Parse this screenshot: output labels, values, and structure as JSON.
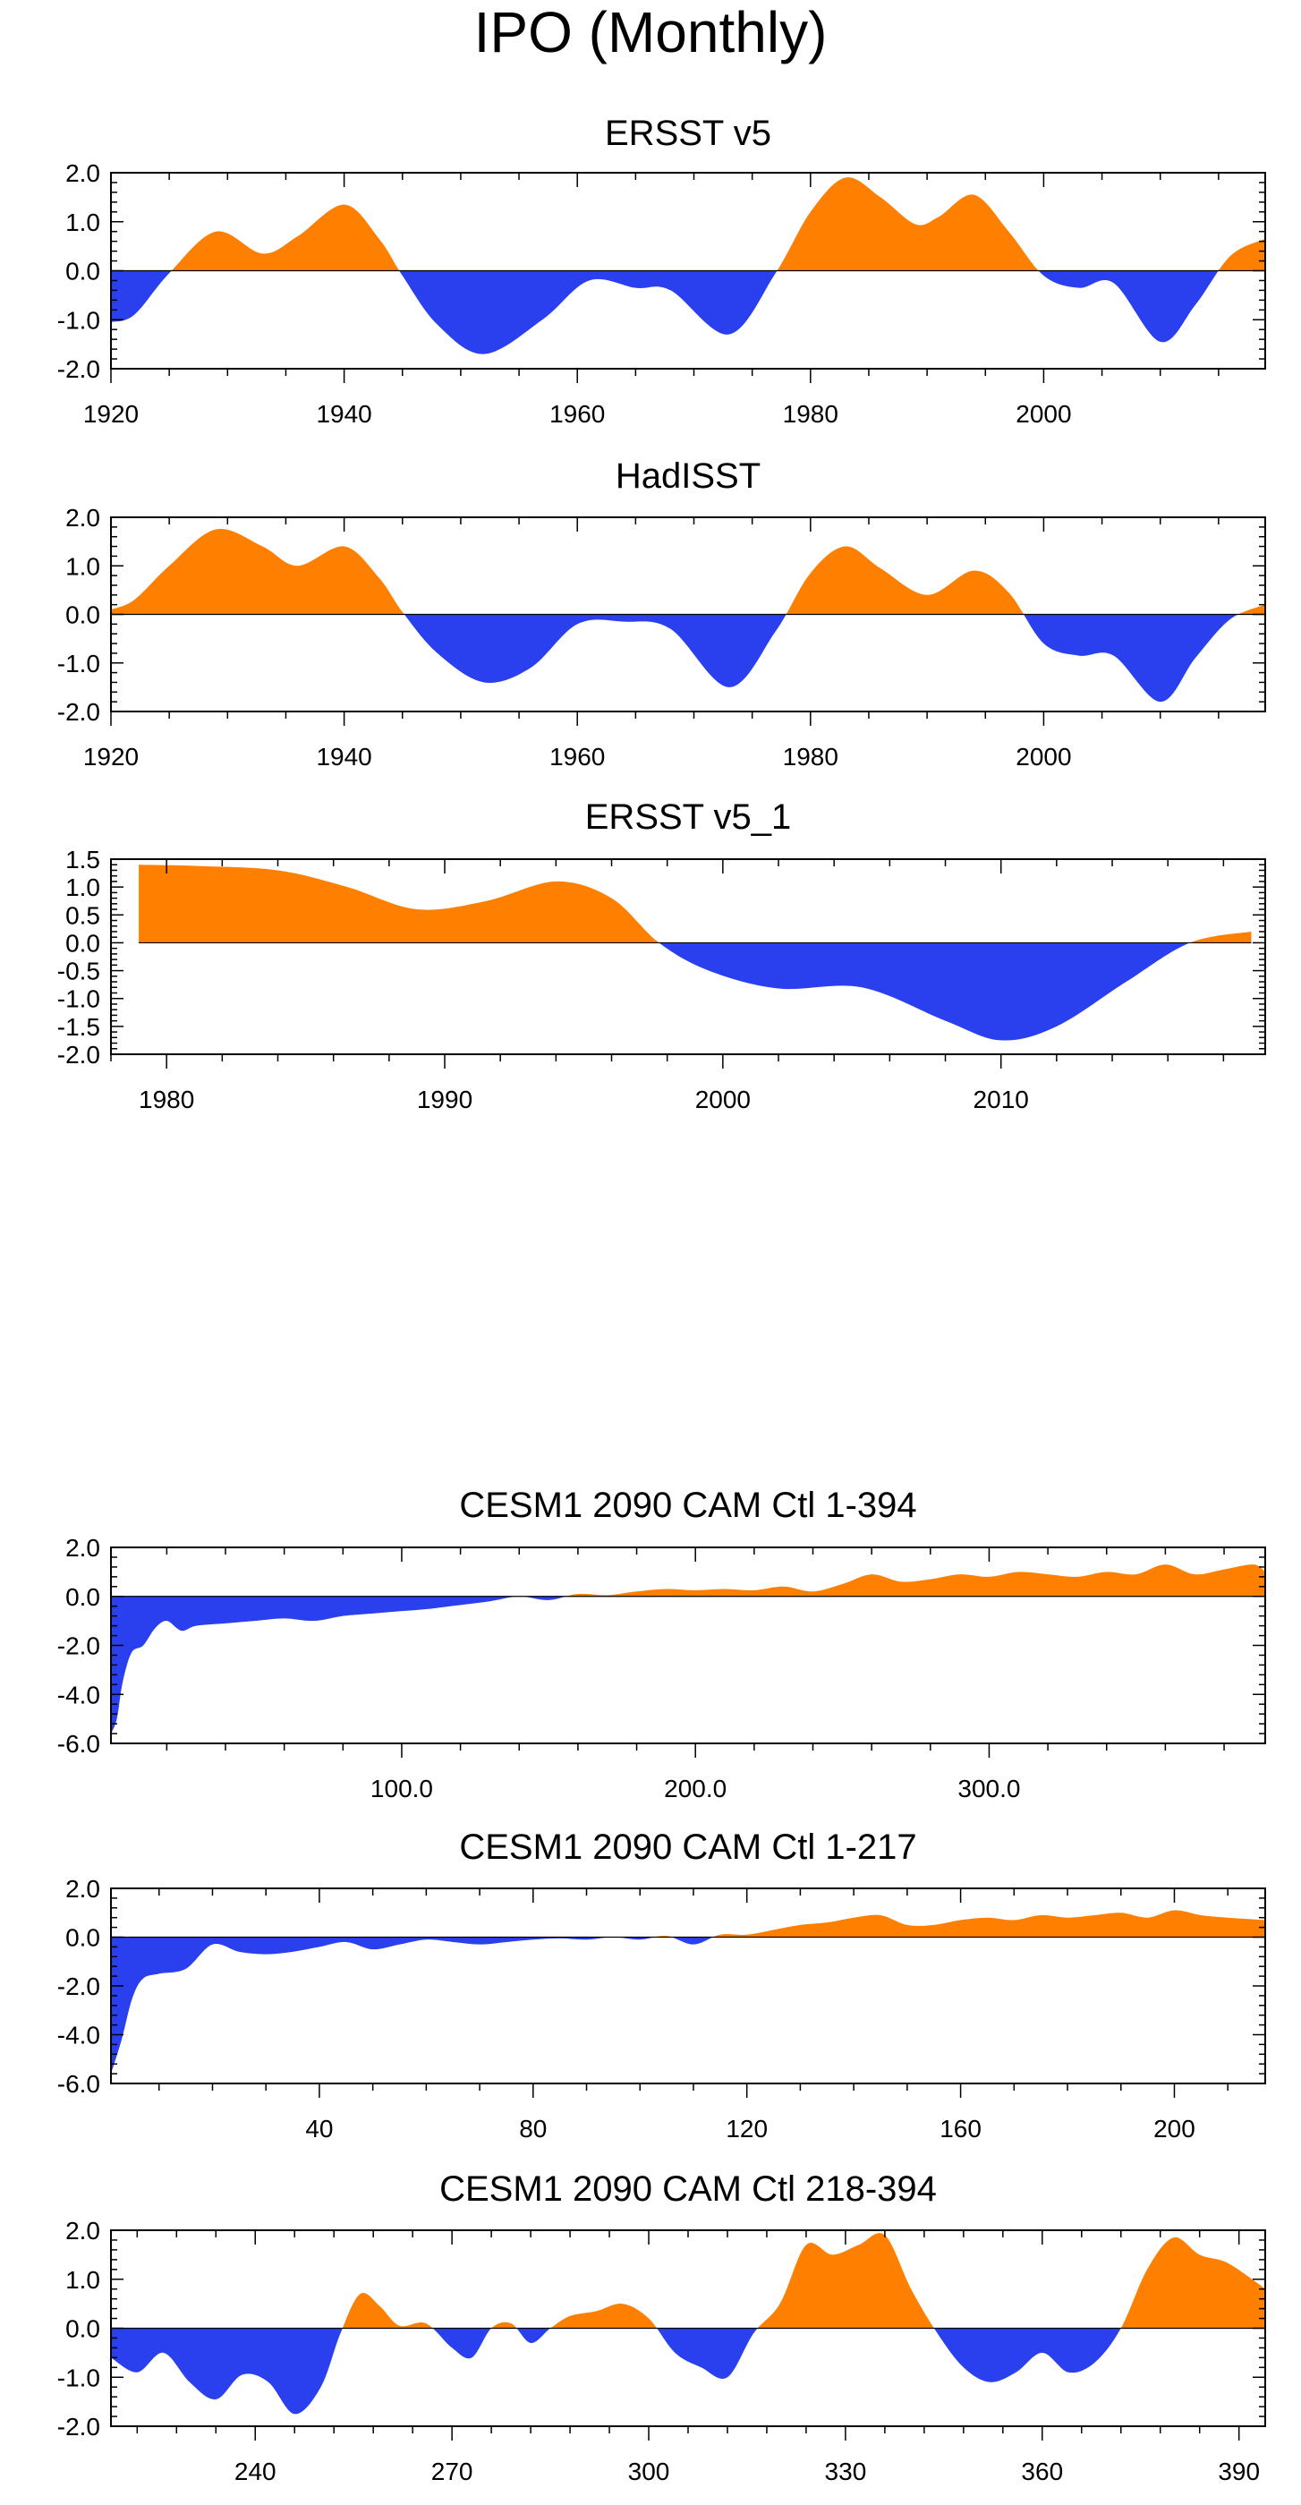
{
  "title": "IPO (Monthly)",
  "colors": {
    "positive": "#ff8000",
    "negative": "#2a40ee",
    "axis": "#000000"
  },
  "chart_data": [
    {
      "type": "area",
      "title": "ERSST v5",
      "xlim": [
        1920,
        2019
      ],
      "ylim": [
        -2.0,
        2.0
      ],
      "x_ticks": [
        1920,
        1940,
        1960,
        1980,
        2000
      ],
      "x_tick_labels": [
        "1920",
        "1940",
        "1960",
        "1980",
        "2000"
      ],
      "y_ticks": [
        2.0,
        1.0,
        0.0,
        -1.0,
        -2.0
      ],
      "y_tick_labels": [
        "2.0",
        "1.0",
        "0.0",
        "-1.0",
        "-2.0"
      ],
      "series": [
        {
          "name": "ERSST v5",
          "x": [
            1920,
            1922,
            1925,
            1929,
            1933,
            1936,
            1940,
            1943,
            1945,
            1948,
            1952,
            1957,
            1961,
            1965,
            1968,
            1973,
            1977,
            1980,
            1983,
            1986,
            1989,
            1991,
            1994,
            1997,
            2000,
            2003,
            2006,
            2010,
            2013,
            2016,
            2019
          ],
          "values": [
            -1.05,
            -0.9,
            -0.05,
            0.8,
            0.35,
            0.7,
            1.35,
            0.65,
            -0.1,
            -1.1,
            -1.7,
            -1.0,
            -0.2,
            -0.35,
            -0.4,
            -1.3,
            -0.05,
            1.2,
            1.9,
            1.5,
            0.95,
            1.1,
            1.55,
            0.8,
            -0.1,
            -0.35,
            -0.25,
            -1.45,
            -0.7,
            0.3,
            0.65
          ]
        }
      ]
    },
    {
      "type": "area",
      "title": "HadISST",
      "xlim": [
        1920,
        2019
      ],
      "ylim": [
        -2.0,
        2.0
      ],
      "x_ticks": [
        1920,
        1940,
        1960,
        1980,
        2000
      ],
      "x_tick_labels": [
        "1920",
        "1940",
        "1960",
        "1980",
        "2000"
      ],
      "y_ticks": [
        2.0,
        1.0,
        0.0,
        -1.0,
        -2.0
      ],
      "y_tick_labels": [
        "2.0",
        "1.0",
        "0.0",
        "-1.0",
        "-2.0"
      ],
      "series": [
        {
          "name": "HadISST",
          "x": [
            1920,
            1922,
            1925,
            1929,
            1933,
            1936,
            1940,
            1943,
            1945,
            1948,
            1952,
            1956,
            1960,
            1964,
            1968,
            1973,
            1977,
            1980,
            1983,
            1986,
            1990,
            1994,
            1997,
            2000,
            2003,
            2006,
            2010,
            2013,
            2016,
            2019
          ],
          "values": [
            0.1,
            0.3,
            1.0,
            1.75,
            1.4,
            1.0,
            1.4,
            0.75,
            0.05,
            -0.8,
            -1.4,
            -1.1,
            -0.2,
            -0.15,
            -0.3,
            -1.5,
            -0.35,
            0.85,
            1.4,
            0.95,
            0.4,
            0.9,
            0.45,
            -0.6,
            -0.85,
            -0.85,
            -1.8,
            -0.9,
            -0.1,
            0.2
          ]
        }
      ]
    },
    {
      "type": "area",
      "title": "ERSST v5_1",
      "xlim": [
        1978,
        2019.5
      ],
      "ylim": [
        -2.0,
        1.5
      ],
      "x_ticks": [
        1980,
        1990,
        2000,
        2010
      ],
      "x_tick_labels": [
        "1980",
        "1990",
        "2000",
        "2010"
      ],
      "y_ticks": [
        1.5,
        1.0,
        0.5,
        0.0,
        -0.5,
        -1.0,
        -1.5,
        -2.0
      ],
      "y_tick_labels": [
        "1.5",
        "1.0",
        "0.5",
        "0.0",
        "-0.5",
        "-1.0",
        "-1.5",
        "-2.0"
      ],
      "series": [
        {
          "name": "ERSST v5_1",
          "x": [
            1979,
            1981,
            1984,
            1986.5,
            1989,
            1991.5,
            1994,
            1996,
            1997.7,
            1999.5,
            2002,
            2005,
            2008,
            2010,
            2012,
            2014.5,
            2016.8,
            2019
          ],
          "values": [
            1.4,
            1.38,
            1.3,
            1.0,
            0.6,
            0.75,
            1.1,
            0.8,
            0.0,
            -0.5,
            -0.82,
            -0.8,
            -1.4,
            -1.75,
            -1.5,
            -0.7,
            0.0,
            0.2
          ]
        }
      ]
    },
    {
      "type": "area",
      "title": "CESM1 2090 CAM Ctl 1-394",
      "xlim": [
        1,
        394
      ],
      "ylim": [
        -6.0,
        2.0
      ],
      "x_ticks": [
        100,
        200,
        300
      ],
      "x_tick_labels": [
        "100.0",
        "200.0",
        "300.0"
      ],
      "y_ticks": [
        2.0,
        0.0,
        -2.0,
        -4.0,
        -6.0
      ],
      "y_tick_labels": [
        "2.0",
        "0.0",
        "-2.0",
        "-4.0",
        "-6.0"
      ],
      "series": [
        {
          "name": "CESM1 2090 CAM Ctl 1-394",
          "x": [
            1,
            3,
            5,
            8,
            12,
            16,
            20,
            25,
            30,
            40,
            50,
            60,
            70,
            80,
            90,
            100,
            110,
            120,
            130,
            140,
            150,
            160,
            170,
            180,
            190,
            200,
            210,
            220,
            230,
            240,
            250,
            260,
            270,
            280,
            290,
            300,
            310,
            320,
            330,
            340,
            350,
            360,
            370,
            380,
            390,
            394
          ],
          "values": [
            -5.6,
            -5.0,
            -3.5,
            -2.3,
            -2.0,
            -1.3,
            -1.0,
            -1.4,
            -1.2,
            -1.1,
            -1.0,
            -0.9,
            -1.0,
            -0.8,
            -0.7,
            -0.6,
            -0.5,
            -0.35,
            -0.2,
            0.0,
            -0.15,
            0.1,
            0.05,
            0.2,
            0.3,
            0.25,
            0.3,
            0.25,
            0.4,
            0.2,
            0.5,
            0.9,
            0.6,
            0.7,
            0.9,
            0.8,
            1.0,
            0.9,
            0.8,
            1.0,
            0.9,
            1.3,
            0.9,
            1.1,
            1.3,
            1.0
          ]
        }
      ]
    },
    {
      "type": "area",
      "title": "CESM1 2090 CAM Ctl 1-217",
      "xlim": [
        1,
        217
      ],
      "ylim": [
        -6.0,
        2.0
      ],
      "x_ticks": [
        40,
        80,
        120,
        160,
        200
      ],
      "x_tick_labels": [
        "40",
        "80",
        "120",
        "160",
        "200"
      ],
      "y_ticks": [
        2.0,
        0.0,
        -2.0,
        -4.0,
        -6.0
      ],
      "y_tick_labels": [
        "2.0",
        "0.0",
        "-2.0",
        "-4.0",
        "-6.0"
      ],
      "series": [
        {
          "name": "CESM1 2090 CAM Ctl 1-217",
          "x": [
            1,
            3,
            5,
            7,
            10,
            15,
            20,
            25,
            30,
            35,
            40,
            45,
            50,
            55,
            60,
            65,
            70,
            75,
            80,
            85,
            90,
            95,
            100,
            105,
            110,
            115,
            120,
            125,
            130,
            135,
            140,
            145,
            150,
            155,
            160,
            165,
            170,
            175,
            180,
            185,
            190,
            195,
            200,
            205,
            210,
            217
          ],
          "values": [
            -5.6,
            -4.2,
            -2.5,
            -1.7,
            -1.5,
            -1.3,
            -0.3,
            -0.6,
            -0.7,
            -0.6,
            -0.4,
            -0.2,
            -0.5,
            -0.3,
            -0.1,
            -0.2,
            -0.3,
            -0.2,
            -0.1,
            -0.05,
            -0.1,
            0.0,
            -0.1,
            0.05,
            -0.3,
            0.1,
            0.1,
            0.3,
            0.5,
            0.6,
            0.8,
            0.9,
            0.5,
            0.5,
            0.7,
            0.8,
            0.7,
            0.9,
            0.8,
            0.9,
            1.0,
            0.8,
            1.1,
            0.9,
            0.8,
            0.7
          ]
        }
      ]
    },
    {
      "type": "area",
      "title": "CESM1 2090 CAM Ctl 218-394",
      "xlim": [
        218,
        394
      ],
      "ylim": [
        -2.0,
        2.0
      ],
      "x_ticks": [
        240,
        270,
        300,
        330,
        360,
        390
      ],
      "x_tick_labels": [
        "240",
        "270",
        "300",
        "330",
        "360",
        "390"
      ],
      "y_ticks": [
        2.0,
        1.0,
        0.0,
        -1.0,
        -2.0
      ],
      "y_tick_labels": [
        "2.0",
        "1.0",
        "0.0",
        "-1.0",
        "-2.0"
      ],
      "series": [
        {
          "name": "CESM1 2090 CAM Ctl 218-394",
          "x": [
            218,
            222,
            226,
            230,
            234,
            238,
            242,
            246,
            250,
            253,
            256,
            259,
            262,
            266,
            270,
            273,
            276,
            279,
            282,
            285,
            288,
            292,
            296,
            300,
            304,
            308,
            312,
            316,
            320,
            324,
            328,
            332,
            336,
            340,
            344,
            348,
            352,
            356,
            360,
            364,
            368,
            372,
            376,
            380,
            384,
            388,
            392,
            394
          ],
          "values": [
            -0.6,
            -0.9,
            -0.5,
            -1.1,
            -1.45,
            -0.95,
            -1.1,
            -1.75,
            -1.2,
            -0.1,
            0.7,
            0.45,
            0.05,
            0.1,
            -0.4,
            -0.6,
            0.0,
            0.1,
            -0.3,
            0.0,
            0.25,
            0.35,
            0.5,
            0.2,
            -0.5,
            -0.8,
            -1.0,
            -0.1,
            0.5,
            1.7,
            1.5,
            1.7,
            1.9,
            0.8,
            -0.1,
            -0.8,
            -1.1,
            -0.9,
            -0.5,
            -0.9,
            -0.7,
            0.0,
            1.2,
            1.85,
            1.5,
            1.35,
            1.0,
            0.8
          ]
        }
      ]
    }
  ]
}
